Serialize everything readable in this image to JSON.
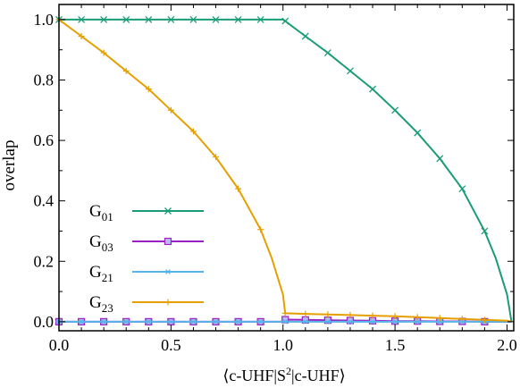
{
  "chart_data": {
    "type": "line",
    "title": "",
    "xlabel": "⟨c-UHF|S²|c-UHF⟩",
    "xlabel_parts": {
      "pre": "⟨c-UHF|S",
      "sup": "2",
      "post": "|c-UHF⟩"
    },
    "ylabel": "overlap",
    "xlim": [
      0.0,
      2.03
    ],
    "ylim": [
      -0.03,
      1.05
    ],
    "xticks": [
      0.0,
      0.5,
      1.0,
      1.5,
      2.0
    ],
    "xtick_labels": [
      "0.0",
      "0.5",
      "1.0",
      "1.5",
      "2.0"
    ],
    "yticks": [
      0.0,
      0.2,
      0.4,
      0.6,
      0.8,
      1.0
    ],
    "ytick_labels": [
      "0.0",
      "0.2",
      "0.4",
      "0.6",
      "0.8",
      "1.0"
    ],
    "grid": false,
    "legend_position": "lower-left",
    "series": [
      {
        "name": "G01",
        "label_base": "G",
        "label_sub": "01",
        "color": "#1a9c78",
        "marker": "x",
        "x": [
          0.0,
          0.1,
          0.2,
          0.3,
          0.4,
          0.5,
          0.6,
          0.7,
          0.8,
          0.9,
          1.0,
          1.01,
          1.1,
          1.2,
          1.3,
          1.4,
          1.5,
          1.6,
          1.7,
          1.8,
          1.9,
          1.95,
          2.0,
          2.02
        ],
        "y": [
          1.0,
          1.0,
          1.0,
          1.0,
          1.0,
          1.0,
          1.0,
          1.0,
          1.0,
          1.0,
          1.0,
          0.995,
          0.945,
          0.89,
          0.83,
          0.77,
          0.7,
          0.625,
          0.54,
          0.44,
          0.3,
          0.21,
          0.09,
          0.0
        ],
        "marker_x": [
          0.0,
          0.1,
          0.2,
          0.3,
          0.4,
          0.5,
          0.6,
          0.7,
          0.8,
          0.9,
          1.01,
          1.1,
          1.2,
          1.3,
          1.4,
          1.5,
          1.6,
          1.7,
          1.8,
          1.9
        ],
        "marker_y": [
          1.0,
          1.0,
          1.0,
          1.0,
          1.0,
          1.0,
          1.0,
          1.0,
          1.0,
          1.0,
          0.995,
          0.945,
          0.89,
          0.83,
          0.77,
          0.7,
          0.625,
          0.54,
          0.44,
          0.3
        ]
      },
      {
        "name": "G03",
        "label_base": "G",
        "label_sub": "03",
        "color": "#9a22c4",
        "marker": "square",
        "x": [
          0.0,
          0.1,
          0.2,
          0.3,
          0.4,
          0.5,
          0.6,
          0.7,
          0.8,
          0.9,
          1.0,
          1.01,
          1.1,
          1.2,
          1.3,
          1.4,
          1.5,
          1.6,
          1.7,
          1.8,
          1.9,
          2.0,
          2.02
        ],
        "y": [
          0.0,
          0.0,
          0.0,
          0.0,
          0.0,
          0.0,
          0.0,
          0.0,
          0.0,
          0.0,
          0.0,
          0.007,
          0.006,
          0.005,
          0.004,
          0.003,
          0.002,
          0.002,
          0.001,
          0.001,
          0.0,
          0.0,
          0.0
        ],
        "marker_x": [
          0.0,
          0.1,
          0.2,
          0.3,
          0.4,
          0.5,
          0.6,
          0.7,
          0.8,
          0.9,
          1.01,
          1.1,
          1.2,
          1.3,
          1.4,
          1.5,
          1.6,
          1.7,
          1.8,
          1.9
        ],
        "marker_y": [
          0.0,
          0.0,
          0.0,
          0.0,
          0.0,
          0.0,
          0.0,
          0.0,
          0.0,
          0.0,
          0.007,
          0.006,
          0.005,
          0.004,
          0.003,
          0.002,
          0.002,
          0.001,
          0.001,
          0.0
        ]
      },
      {
        "name": "G21",
        "label_base": "G",
        "label_sub": "21",
        "color": "#56b4e9",
        "marker": "asterisk",
        "x": [
          0.0,
          0.1,
          0.2,
          0.3,
          0.4,
          0.5,
          0.6,
          0.7,
          0.8,
          0.9,
          1.0,
          1.01,
          1.1,
          1.2,
          1.3,
          1.4,
          1.5,
          1.6,
          1.7,
          1.8,
          1.9,
          2.0,
          2.02
        ],
        "y": [
          0.0,
          0.0,
          0.0,
          0.0,
          0.0,
          0.0,
          0.0,
          0.0,
          0.0,
          0.0,
          0.0,
          0.0,
          0.0,
          0.0,
          0.0,
          0.0,
          0.0,
          0.0,
          0.0,
          0.0,
          0.0,
          0.0,
          0.0
        ],
        "marker_x": [
          0.0,
          0.1,
          0.2,
          0.3,
          0.4,
          0.5,
          0.6,
          0.7,
          0.8,
          0.9,
          1.01,
          1.1,
          1.2,
          1.3,
          1.4,
          1.5,
          1.6,
          1.7,
          1.8,
          1.9
        ],
        "marker_y": [
          0.0,
          0.0,
          0.0,
          0.0,
          0.0,
          0.0,
          0.0,
          0.0,
          0.0,
          0.0,
          0.0,
          0.0,
          0.0,
          0.0,
          0.0,
          0.0,
          0.0,
          0.0,
          0.0,
          0.0
        ]
      },
      {
        "name": "G23",
        "label_base": "G",
        "label_sub": "23",
        "color": "#e69f00",
        "marker": "plus",
        "x": [
          0.0,
          0.1,
          0.2,
          0.3,
          0.4,
          0.5,
          0.6,
          0.7,
          0.8,
          0.9,
          0.95,
          1.0,
          1.01,
          1.1,
          1.2,
          1.3,
          1.4,
          1.5,
          1.6,
          1.7,
          1.8,
          1.9,
          2.0,
          2.02
        ],
        "y": [
          1.0,
          0.945,
          0.89,
          0.83,
          0.77,
          0.7,
          0.63,
          0.545,
          0.44,
          0.305,
          0.21,
          0.09,
          0.028,
          0.026,
          0.024,
          0.022,
          0.02,
          0.018,
          0.015,
          0.012,
          0.009,
          0.006,
          0.003,
          0.0
        ],
        "marker_x": [
          0.0,
          0.1,
          0.2,
          0.3,
          0.4,
          0.5,
          0.6,
          0.7,
          0.8,
          0.9,
          1.01,
          1.1,
          1.2,
          1.3,
          1.4,
          1.5,
          1.6,
          1.7,
          1.8,
          1.9
        ],
        "marker_y": [
          1.0,
          0.945,
          0.89,
          0.83,
          0.77,
          0.7,
          0.63,
          0.545,
          0.44,
          0.305,
          0.028,
          0.026,
          0.024,
          0.022,
          0.02,
          0.018,
          0.015,
          0.012,
          0.009,
          0.006
        ]
      }
    ]
  }
}
